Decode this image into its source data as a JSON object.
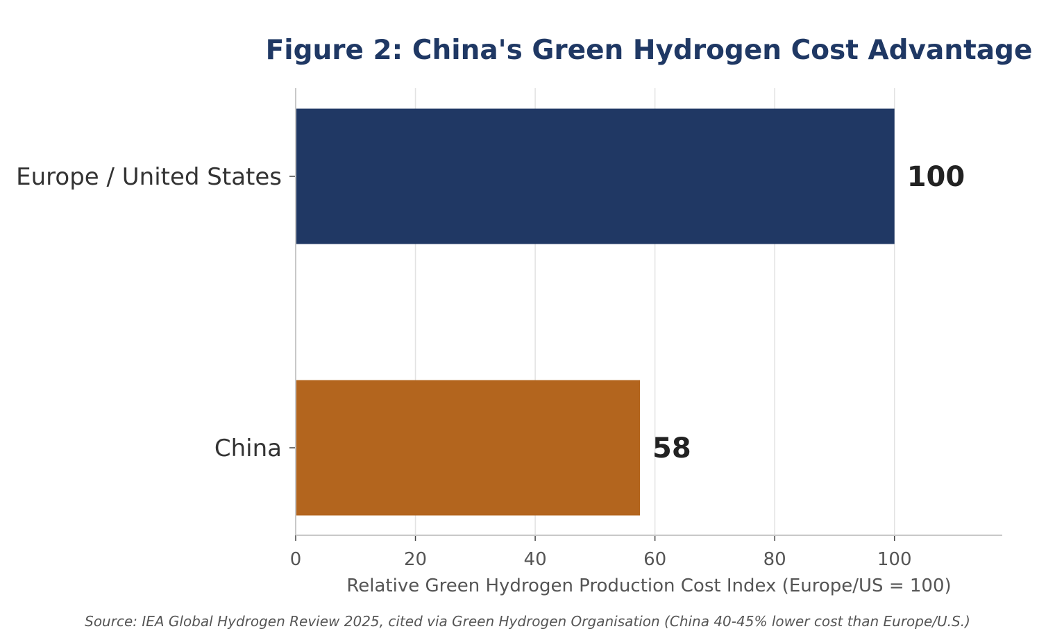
{
  "chart_data": {
    "type": "bar",
    "orientation": "horizontal",
    "title": "Figure 2: China's Green Hydrogen Cost Advantage",
    "xlabel": "Relative Green Hydrogen Production Cost Index (Europe/US = 100)",
    "ylabel": "",
    "categories": [
      "Europe / United States",
      "China"
    ],
    "values": [
      100,
      57.5
    ],
    "value_labels": [
      "100",
      "58"
    ],
    "colors": [
      "#203864",
      "#b3651e"
    ],
    "xlim": [
      0,
      118
    ],
    "xticks": [
      0,
      20,
      40,
      60,
      80,
      100
    ],
    "grid": "vertical",
    "source": "Source: IEA Global Hydrogen Review 2025, cited via Green Hydrogen Organisation (China 40-45% lower cost than Europe/U.S.)"
  }
}
